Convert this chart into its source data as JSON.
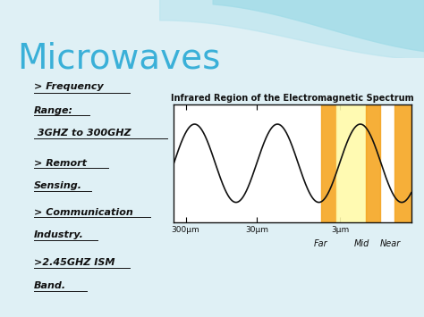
{
  "title": "Microwaves",
  "title_color": "#3ab0d8",
  "title_fontsize": 28,
  "bg_color": "#dff0f5",
  "bullet1_line1": "> Frequency",
  "bullet1_line2": "Range:",
  "bullet1_line3": " 3GHZ to 300GHZ",
  "bullet2_line1": "> Remort",
  "bullet2_line2": "Sensing.",
  "bullet3_line1": "> Communication",
  "bullet3_line2": "Industry.",
  "bullet4_line1": ">2.45GHZ ISM",
  "bullet4_line2": "Band.",
  "ir_title": "Infrared Region of the Electromagnetic Spectrum",
  "ir_title_fontsize": 7,
  "wave_labels": [
    "300μm",
    "30μm",
    "3μm"
  ],
  "region_labels": [
    "Far",
    "Mid",
    "Near"
  ],
  "text_color": "#111111",
  "bullet_fontsize": 8,
  "wave_color": "#111111",
  "orange_color": "#f5a623",
  "yellow_color": "#fffaaa",
  "box_bg": "#ffffff"
}
